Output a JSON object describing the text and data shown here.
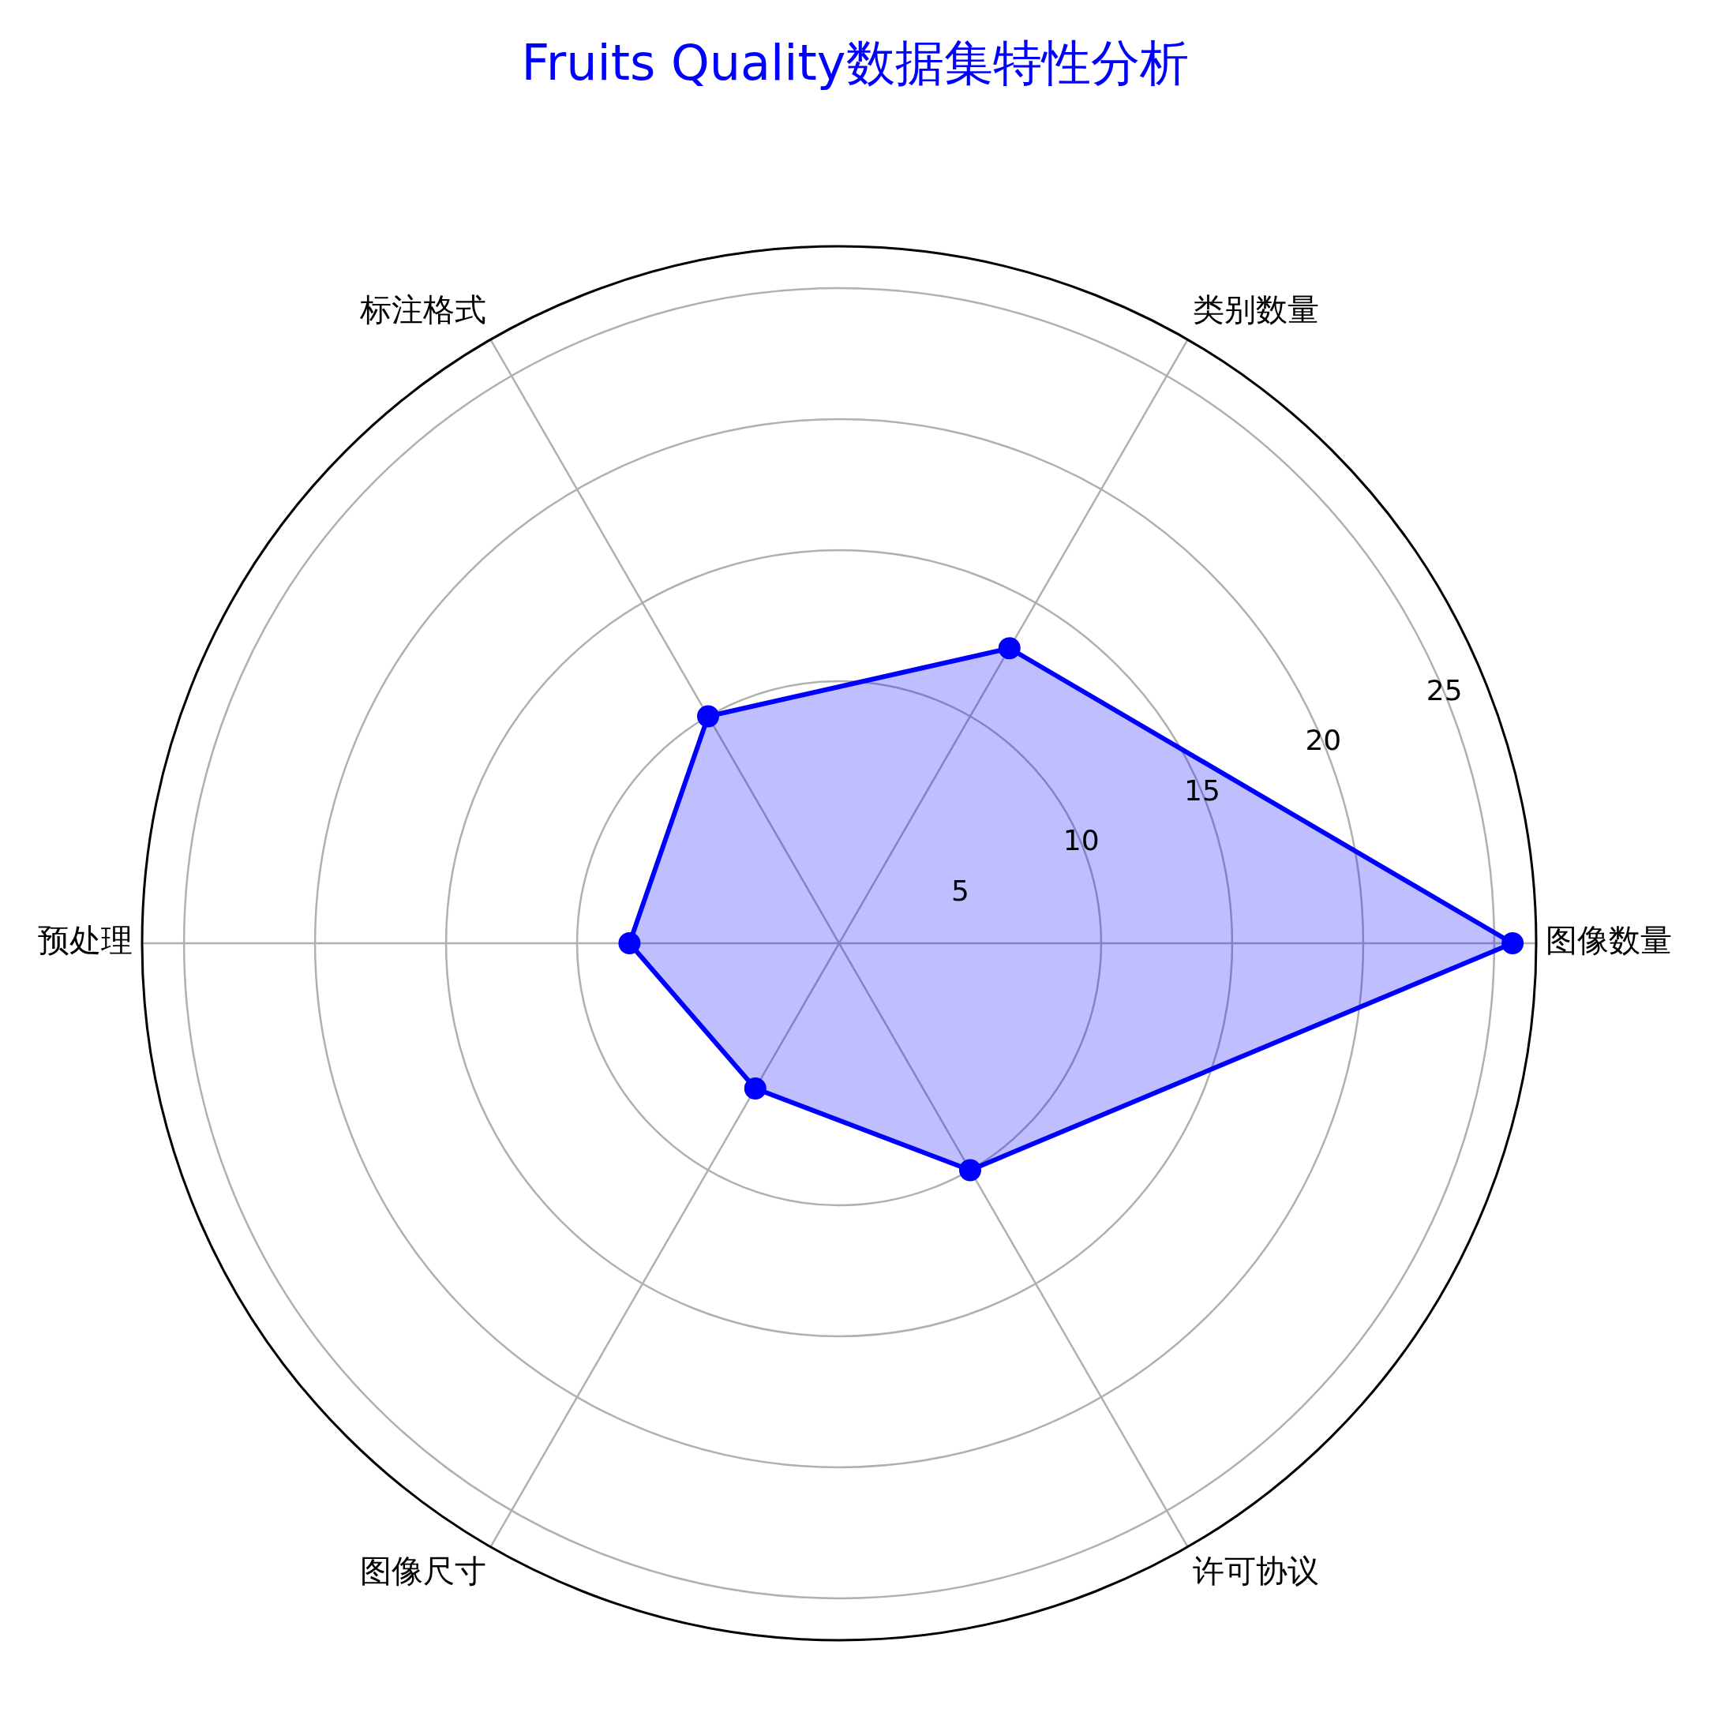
{
  "chart_data": {
    "type": "radar",
    "title": "Fruits Quality数据集特性分析",
    "categories": [
      "类别数量",
      "图像数量",
      "许可协议",
      "图像尺寸",
      "预处理",
      "标注格式"
    ],
    "series": [
      {
        "color": "#0000ff",
        "values": [
          13,
          25.7,
          10,
          6.4,
          8,
          10
        ]
      }
    ],
    "ylim": [
      0,
      26.6
    ],
    "yticks": [
      5,
      10,
      15,
      20,
      25
    ],
    "grid": true,
    "legend": false,
    "marker": "circle",
    "line_style": "solid"
  }
}
